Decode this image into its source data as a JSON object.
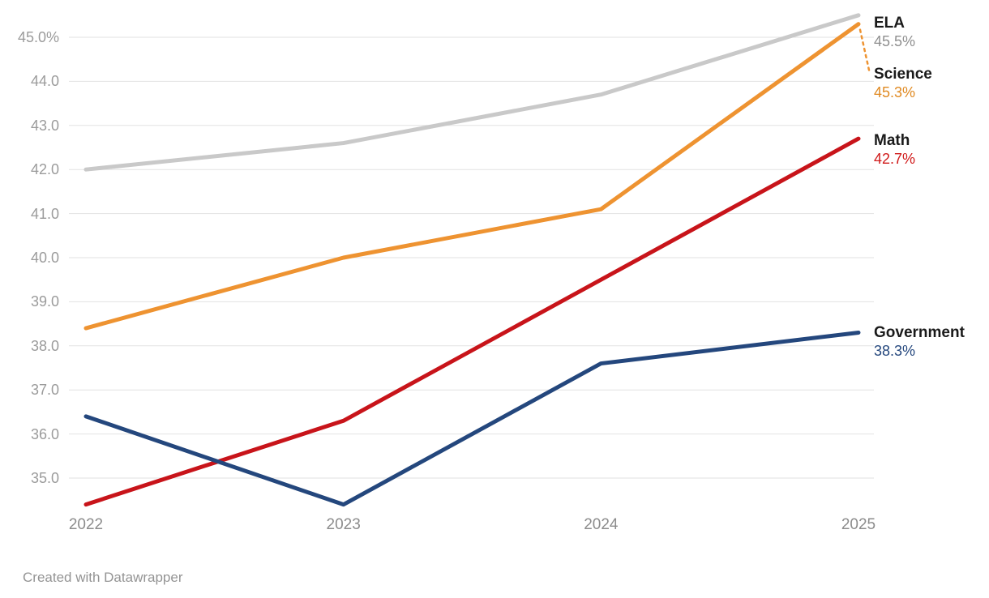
{
  "chart_data": {
    "type": "line",
    "x": [
      "2022",
      "2023",
      "2024",
      "2025"
    ],
    "series": [
      {
        "name": "ELA",
        "values": [
          42.0,
          42.6,
          43.7,
          45.5
        ],
        "end_label": "45.5%",
        "color": "#c9c9c9",
        "label_color": "#8f8f8f"
      },
      {
        "name": "Science",
        "values": [
          38.4,
          40.0,
          41.1,
          45.3
        ],
        "end_label": "45.3%",
        "color": "#ee9331",
        "label_color": "#e08a22"
      },
      {
        "name": "Math",
        "values": [
          34.4,
          36.3,
          39.5,
          42.7
        ],
        "end_label": "42.7%",
        "color": "#c8141a",
        "label_color": "#d01a1a"
      },
      {
        "name": "Government",
        "values": [
          36.4,
          34.4,
          37.6,
          38.3
        ],
        "end_label": "38.3%",
        "color": "#24477d",
        "label_color": "#24477d"
      }
    ],
    "y_ticks": [
      {
        "value": 45,
        "label": "45.0%"
      },
      {
        "value": 44,
        "label": "44.0"
      },
      {
        "value": 43,
        "label": "43.0"
      },
      {
        "value": 42,
        "label": "42.0"
      },
      {
        "value": 41,
        "label": "41.0"
      },
      {
        "value": 40,
        "label": "40.0"
      },
      {
        "value": 39,
        "label": "39.0"
      },
      {
        "value": 38,
        "label": "38.0"
      },
      {
        "value": 37,
        "label": "37.0"
      },
      {
        "value": 36,
        "label": "36.0"
      },
      {
        "value": 35,
        "label": "35.0"
      }
    ],
    "x_tick_labels": [
      "2022",
      "2023",
      "2024",
      "2025"
    ],
    "ylim": [
      34.3,
      45.6
    ],
    "grid": "horizontal",
    "legend_position": "right-direct-labels",
    "title": "",
    "xlabel": "",
    "ylabel": ""
  },
  "colors": {
    "gridline": "#e2e2e2",
    "axis_label": "#9b9b9b",
    "x_axis_label": "#8c8c8c",
    "series_name": "#1a1a1a",
    "attribution": "#949494",
    "background": "#ffffff"
  },
  "footer": {
    "attribution": "Created with Datawrapper"
  }
}
